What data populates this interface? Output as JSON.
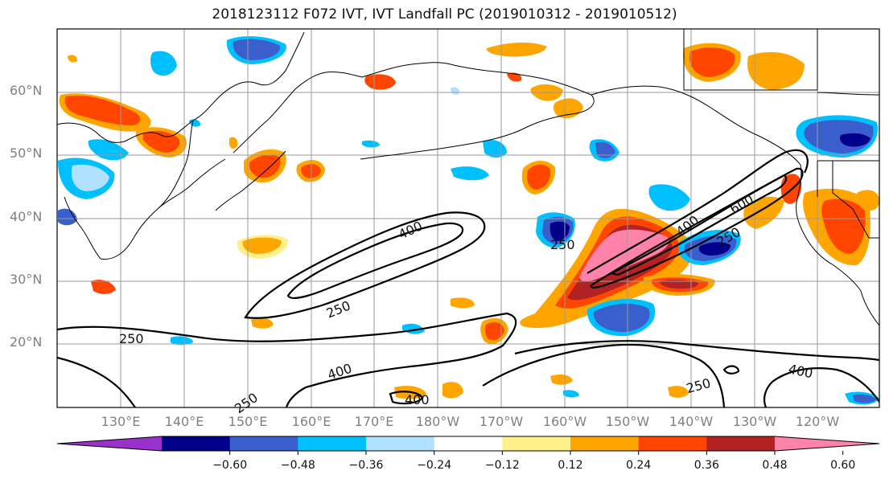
{
  "title": "2018123112 F072 IVT, IVT Landfall PC (2019010312 - 2019010512)",
  "lat_labels": [
    "60°N",
    "50°N",
    "40°N",
    "30°N",
    "20°N"
  ],
  "lon_labels": [
    "130°E",
    "140°E",
    "150°E",
    "160°E",
    "170°E",
    "180°W",
    "170°W",
    "160°W",
    "150°W",
    "140°W",
    "130°W",
    "120°W"
  ],
  "contour_labels": [
    "400",
    "250",
    "250",
    "400",
    "250",
    "400",
    "600",
    "250",
    "250",
    "400",
    "250",
    "400"
  ],
  "colorbar": {
    "ticks": [
      "−0.60",
      "−0.48",
      "−0.36",
      "−0.24",
      "−0.12",
      "0.12",
      "0.24",
      "0.36",
      "0.48",
      "0.60"
    ],
    "colors": [
      "#9932cc",
      "#00008b",
      "#3a5fcd",
      "#00bfff",
      "#b0e2ff",
      "#ffffff",
      "#fff08c",
      "#ffa500",
      "#ff4500",
      "#b22222",
      "#ff82ab"
    ]
  }
}
